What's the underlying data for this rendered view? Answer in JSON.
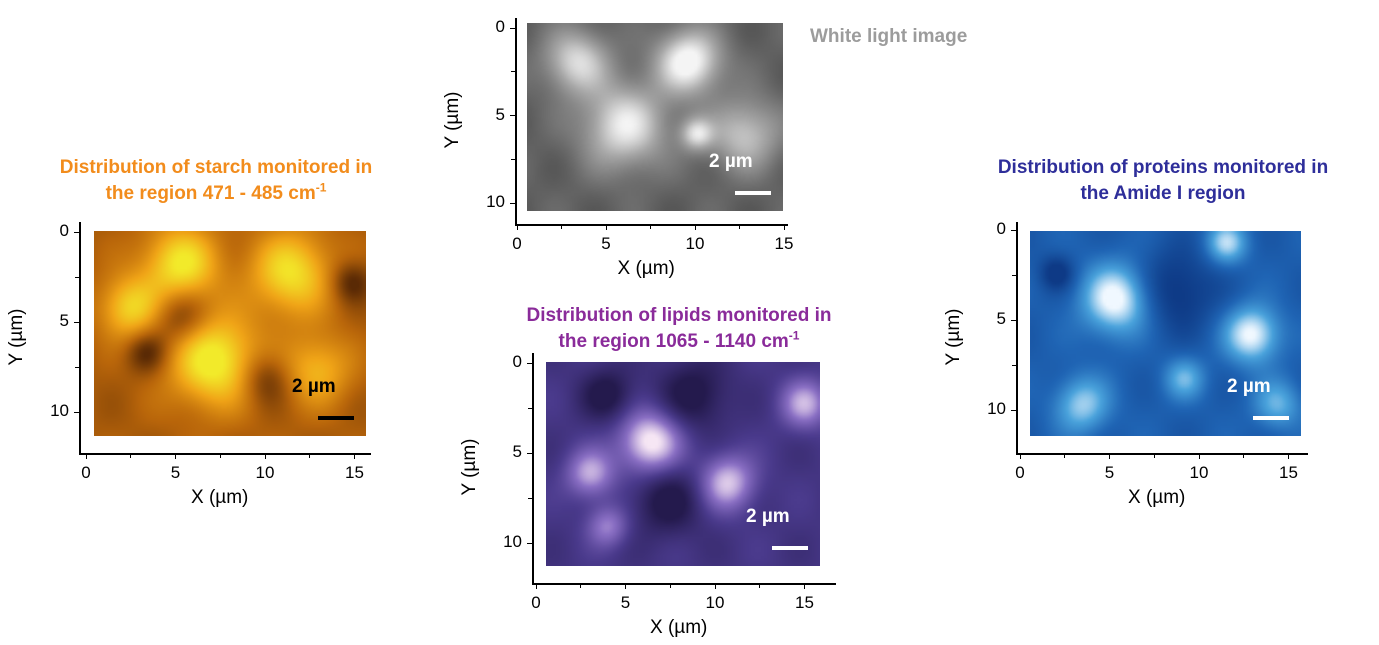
{
  "chart_data": [
    {
      "type": "heatmap",
      "panel": "white-light",
      "title": "White light image",
      "title_color": "#9c9c9c",
      "xlabel": "X (µm)",
      "ylabel": "Y (µm)",
      "x_ticks": [
        "0",
        "5",
        "10",
        "15"
      ],
      "y_ticks": [
        "0",
        "5",
        "10"
      ],
      "xlim": [
        0,
        15
      ],
      "ylim": [
        0,
        10
      ],
      "scale_bar_label": "2 µm",
      "scale_bar_color": "#ffffff",
      "colormap": [
        "#2e2e2e",
        "#6a6a6a",
        "#a8a8a8",
        "#f4f4f4"
      ],
      "highlights": [
        {
          "x": 9.5,
          "y": 2.0,
          "r": 2.0,
          "v": 1.0
        },
        {
          "x": 5.5,
          "y": 6.0,
          "r": 2.6,
          "v": 0.85
        },
        {
          "x": 2.5,
          "y": 2.0,
          "r": 2.0,
          "v": 0.75
        },
        {
          "x": 13.0,
          "y": 6.5,
          "r": 2.2,
          "v": 0.65
        },
        {
          "x": 10.0,
          "y": 6.5,
          "r": 1.0,
          "v": 0.7
        }
      ]
    },
    {
      "type": "heatmap",
      "panel": "starch",
      "title_lines": [
        "Distribution of starch monitored in",
        "the region 471 - 485 cm",
        "-1"
      ],
      "title_color": "#f28c1c",
      "xlabel": "X (µm)",
      "ylabel": "Y (µm)",
      "x_ticks": [
        "0",
        "5",
        "10",
        "15"
      ],
      "y_ticks": [
        "0",
        "5",
        "10"
      ],
      "xlim": [
        0,
        15
      ],
      "ylim": [
        0,
        10
      ],
      "scale_bar_label": "2 µm",
      "scale_bar_color": "#000000",
      "colormap": [
        "#5a2a05",
        "#b8650a",
        "#f0a417",
        "#f2ea2a"
      ],
      "highlights": [
        {
          "x": 6.5,
          "y": 7.0,
          "r": 2.6,
          "v": 1.0
        },
        {
          "x": 4.5,
          "y": 1.5,
          "r": 2.2,
          "v": 0.9
        },
        {
          "x": 11.0,
          "y": 2.0,
          "r": 2.4,
          "v": 0.85
        },
        {
          "x": 1.5,
          "y": 4.0,
          "r": 1.8,
          "v": 0.75
        },
        {
          "x": 12.5,
          "y": 7.5,
          "r": 2.0,
          "v": 0.6
        }
      ],
      "lows": [
        {
          "x": 4.5,
          "y": 4.5,
          "r": 1.6
        },
        {
          "x": 9.5,
          "y": 8.0,
          "r": 1.5
        },
        {
          "x": 14.5,
          "y": 2.5,
          "r": 1.2
        },
        {
          "x": 2.5,
          "y": 6.5,
          "r": 1.2
        }
      ]
    },
    {
      "type": "heatmap",
      "panel": "lipids",
      "title_lines": [
        "Distribution of lipids monitored in",
        "the region 1065 - 1140 cm",
        "-1"
      ],
      "title_color": "#8a2b9a",
      "xlabel": "X (µm)",
      "ylabel": "Y (µm)",
      "x_ticks": [
        "0",
        "5",
        "10",
        "15"
      ],
      "y_ticks": [
        "0",
        "5",
        "10"
      ],
      "xlim": [
        0,
        15
      ],
      "ylim": [
        0,
        10
      ],
      "scale_bar_label": "2 µm",
      "scale_bar_color": "#ffffff",
      "colormap": [
        "#241a4d",
        "#4a3a8c",
        "#8a6fc4",
        "#f6e6f4"
      ],
      "highlights": [
        {
          "x": 5.5,
          "y": 4.2,
          "r": 1.8,
          "v": 1.0
        },
        {
          "x": 10.0,
          "y": 6.5,
          "r": 1.6,
          "v": 0.8
        },
        {
          "x": 2.0,
          "y": 6.0,
          "r": 1.4,
          "v": 0.7
        },
        {
          "x": 14.5,
          "y": 2.0,
          "r": 1.4,
          "v": 0.7
        },
        {
          "x": 3.0,
          "y": 9.0,
          "r": 1.2,
          "v": 0.55
        }
      ],
      "lows": [
        {
          "x": 6.5,
          "y": 7.5,
          "r": 2.0
        },
        {
          "x": 8.0,
          "y": 1.5,
          "r": 2.0
        },
        {
          "x": 3.0,
          "y": 1.5,
          "r": 1.5
        }
      ]
    },
    {
      "type": "heatmap",
      "panel": "proteins",
      "title_lines": [
        "Distribution of proteins monitored in",
        "the Amide I region"
      ],
      "title_color": "#2e2e9a",
      "xlabel": "X (µm)",
      "ylabel": "Y (µm)",
      "x_ticks": [
        "0",
        "5",
        "10",
        "15"
      ],
      "y_ticks": [
        "0",
        "5",
        "10"
      ],
      "xlim": [
        0,
        15
      ],
      "ylim": [
        0,
        10
      ],
      "scale_bar_label": "2 µm",
      "scale_bar_color": "#ffffff",
      "colormap": [
        "#0e3a86",
        "#1f64b4",
        "#4aa3dc",
        "#f0f8ff"
      ],
      "highlights": [
        {
          "x": 4.5,
          "y": 3.5,
          "r": 2.0,
          "v": 1.0
        },
        {
          "x": 12.5,
          "y": 5.5,
          "r": 1.6,
          "v": 0.95
        },
        {
          "x": 2.5,
          "y": 9.5,
          "r": 1.6,
          "v": 0.7
        },
        {
          "x": 11.0,
          "y": 0.3,
          "r": 1.2,
          "v": 0.75
        },
        {
          "x": 8.5,
          "y": 8.0,
          "r": 1.2,
          "v": 0.55
        },
        {
          "x": 14.0,
          "y": 9.5,
          "r": 1.4,
          "v": 0.55
        }
      ],
      "lows": [
        {
          "x": 8.0,
          "y": 3.0,
          "r": 2.4
        },
        {
          "x": 1.0,
          "y": 2.0,
          "r": 1.0
        }
      ]
    }
  ]
}
